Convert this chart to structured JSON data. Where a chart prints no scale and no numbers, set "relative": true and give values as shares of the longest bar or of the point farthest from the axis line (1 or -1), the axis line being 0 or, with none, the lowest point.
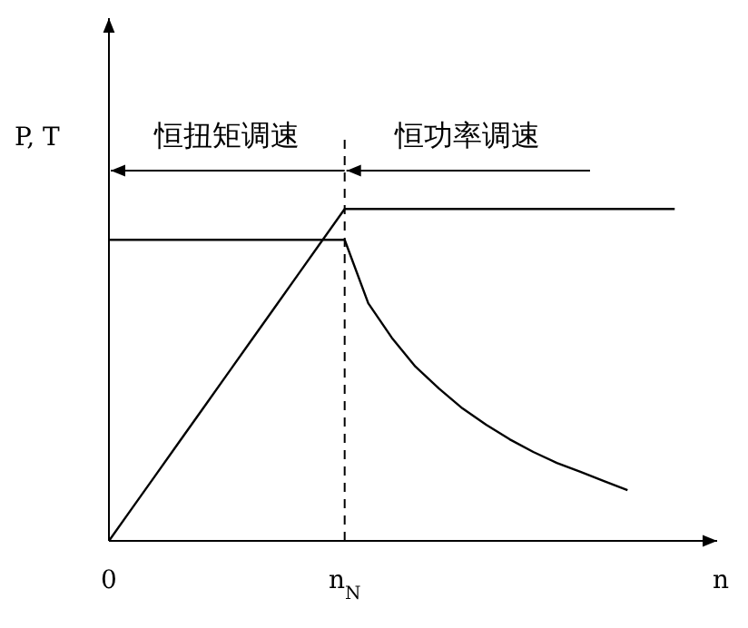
{
  "chart_data": {
    "type": "line",
    "relative": true,
    "xlabel": "n",
    "ylabel": "P, T",
    "categories": [
      "0",
      null,
      null,
      null,
      null,
      null,
      null,
      null,
      null,
      null,
      "n$_{N}$",
      null,
      null,
      null,
      null,
      null,
      null,
      null,
      null,
      null,
      null,
      null,
      null,
      null,
      null
    ],
    "line_style": "solid",
    "series": [
      {
        "color": "#000000",
        "values": [
          0,
          0.1,
          0.2,
          0.3,
          0.4,
          0.5,
          0.6,
          0.7,
          0.8,
          0.9,
          1,
          1,
          1,
          1,
          1,
          1,
          1,
          1,
          1,
          1,
          1,
          1,
          1,
          1,
          1
        ]
      },
      {
        "color": "#000000",
        "values": [
          0.907,
          0.907,
          0.907,
          0.907,
          0.907,
          0.907,
          0.907,
          0.907,
          0.907,
          0.907,
          0.907,
          0.716,
          0.612,
          0.525,
          0.459,
          0.399,
          0.35,
          0.306,
          0.268,
          0.235,
          0.208,
          0.18,
          0.153,
          null,
          null
        ]
      }
    ],
    "ref_lines": [
      {
        "axis": "x",
        "value": "n$_{N}$",
        "line_style": "dashed",
        "color": "#000000"
      }
    ],
    "annotations": [
      "恒扭矩调速",
      "恒功率调速"
    ]
  }
}
